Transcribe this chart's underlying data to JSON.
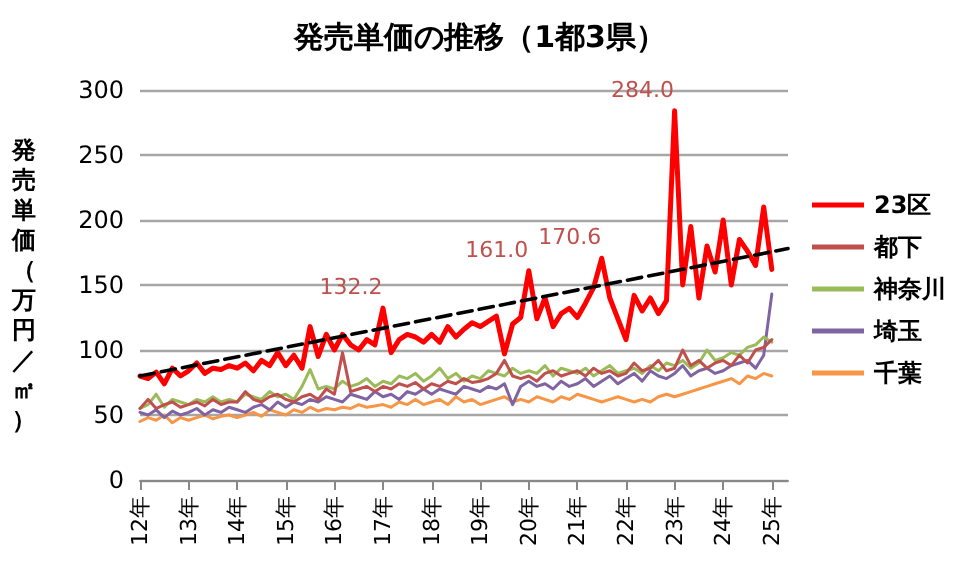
{
  "chart_data": {
    "type": "line",
    "title": "発売単価の推移（1都3県）",
    "ylabel": "発売単価（万円／㎡）",
    "categories": [
      "12年",
      null,
      null,
      null,
      null,
      null,
      "13年",
      null,
      null,
      null,
      null,
      null,
      "14年",
      null,
      null,
      null,
      null,
      null,
      "15年",
      null,
      null,
      null,
      null,
      null,
      "16年",
      null,
      null,
      null,
      null,
      null,
      "17年",
      null,
      null,
      null,
      null,
      null,
      "18年",
      null,
      null,
      null,
      null,
      null,
      "19年",
      null,
      null,
      null,
      null,
      null,
      "20年",
      null,
      null,
      null,
      null,
      null,
      "21年",
      null,
      null,
      null,
      null,
      null,
      "22年",
      null,
      null,
      null,
      null,
      null,
      "23年",
      null,
      null,
      null,
      null,
      null,
      "24年",
      null,
      null,
      null,
      null,
      null,
      "25年",
      null,
      null
    ],
    "ylim": [
      0,
      300
    ],
    "yticks": [
      0,
      50,
      100,
      150,
      200,
      250,
      300
    ],
    "grid": "y",
    "legend": "right",
    "marker": "none",
    "series": [
      {
        "name": "23区",
        "color": "#ff0000",
        "values": [
          80,
          78,
          83,
          74,
          86,
          80,
          84,
          90,
          82,
          86,
          85,
          88,
          86,
          90,
          84,
          92,
          88,
          98,
          88,
          96,
          86,
          118,
          95,
          112,
          100,
          112,
          104,
          100,
          108,
          104,
          132.2,
          98,
          108,
          112,
          110,
          106,
          112,
          106,
          118,
          110,
          116,
          121,
          118,
          122,
          126,
          97,
          120,
          125,
          161.0,
          124,
          140,
          118,
          128,
          132,
          125,
          136,
          148,
          170.6,
          140,
          124,
          108,
          142,
          130,
          140,
          128,
          138,
          284.0,
          150,
          195,
          140,
          180,
          160,
          200,
          150,
          185,
          176,
          165,
          210,
          162,
          null,
          null
        ],
        "value_labels": [
          null,
          null,
          null,
          null,
          null,
          null,
          null,
          null,
          null,
          null,
          null,
          null,
          null,
          null,
          null,
          null,
          null,
          null,
          null,
          null,
          null,
          null,
          null,
          null,
          null,
          null,
          null,
          null,
          null,
          null,
          "132.2",
          null,
          null,
          null,
          null,
          null,
          null,
          null,
          null,
          null,
          null,
          null,
          null,
          null,
          null,
          null,
          null,
          null,
          "161.0",
          null,
          null,
          null,
          null,
          null,
          null,
          null,
          null,
          "170.6",
          null,
          null,
          null,
          null,
          null,
          null,
          null,
          null,
          "284.0",
          null,
          null,
          null,
          null,
          null,
          null,
          null,
          null,
          null,
          null,
          null,
          null,
          null,
          null
        ]
      },
      {
        "name": "都下",
        "color": "#c0504d",
        "values": [
          55,
          62,
          55,
          58,
          60,
          56,
          58,
          60,
          57,
          62,
          58,
          60,
          60,
          68,
          62,
          60,
          64,
          66,
          62,
          60,
          64,
          66,
          62,
          70,
          66,
          98,
          68,
          70,
          72,
          68,
          72,
          70,
          74,
          72,
          75,
          70,
          74,
          72,
          76,
          74,
          78,
          75,
          76,
          78,
          82,
          92,
          80,
          78,
          80,
          76,
          82,
          84,
          80,
          82,
          84,
          80,
          86,
          82,
          84,
          80,
          82,
          90,
          84,
          86,
          92,
          84,
          86,
          100,
          88,
          92,
          86,
          90,
          92,
          88,
          96,
          90,
          100,
          102,
          108,
          null,
          null
        ]
      },
      {
        "name": "神奈川",
        "color": "#9bbb59",
        "values": [
          55,
          58,
          66,
          56,
          62,
          60,
          58,
          62,
          60,
          64,
          60,
          62,
          60,
          66,
          64,
          62,
          68,
          64,
          66,
          62,
          72,
          85,
          70,
          72,
          70,
          76,
          72,
          74,
          78,
          72,
          76,
          74,
          80,
          78,
          82,
          76,
          80,
          86,
          78,
          82,
          76,
          80,
          78,
          84,
          82,
          80,
          86,
          82,
          84,
          82,
          88,
          80,
          86,
          84,
          82,
          86,
          80,
          84,
          88,
          82,
          84,
          86,
          82,
          88,
          84,
          90,
          88,
          92,
          86,
          90,
          100,
          92,
          94,
          98,
          96,
          102,
          104,
          110,
          106,
          null,
          null
        ]
      },
      {
        "name": "埼玉",
        "color": "#8064a2",
        "values": [
          52,
          50,
          54,
          48,
          53,
          50,
          52,
          55,
          50,
          54,
          52,
          56,
          54,
          52,
          56,
          58,
          54,
          60,
          56,
          60,
          58,
          62,
          60,
          64,
          62,
          60,
          66,
          64,
          62,
          68,
          64,
          66,
          62,
          68,
          66,
          70,
          66,
          70,
          68,
          66,
          72,
          70,
          68,
          72,
          70,
          74,
          58,
          72,
          76,
          72,
          74,
          70,
          76,
          72,
          74,
          78,
          72,
          76,
          80,
          74,
          78,
          82,
          76,
          84,
          80,
          78,
          82,
          88,
          80,
          84,
          86,
          82,
          84,
          88,
          90,
          92,
          86,
          96,
          143,
          null,
          null
        ]
      },
      {
        "name": "千葉",
        "color": "#f79646",
        "values": [
          45,
          48,
          46,
          50,
          44,
          48,
          46,
          48,
          50,
          47,
          49,
          50,
          48,
          50,
          52,
          49,
          54,
          52,
          50,
          54,
          52,
          56,
          53,
          55,
          54,
          56,
          55,
          58,
          56,
          57,
          58,
          56,
          60,
          58,
          62,
          58,
          60,
          62,
          58,
          64,
          60,
          62,
          58,
          60,
          62,
          64,
          60,
          62,
          60,
          64,
          62,
          60,
          64,
          62,
          66,
          64,
          62,
          60,
          62,
          64,
          62,
          60,
          62,
          60,
          64,
          66,
          64,
          66,
          68,
          70,
          72,
          74,
          76,
          78,
          74,
          80,
          78,
          82,
          80,
          null,
          null
        ]
      },
      {
        "type": "line",
        "color": "#000000",
        "line_style": "dashed",
        "values": [
          80,
          null,
          null,
          null,
          null,
          null,
          null,
          null,
          null,
          null,
          null,
          null,
          null,
          null,
          null,
          null,
          null,
          null,
          null,
          null,
          null,
          null,
          null,
          null,
          null,
          null,
          null,
          null,
          null,
          null,
          null,
          null,
          null,
          null,
          null,
          null,
          null,
          null,
          null,
          null,
          null,
          null,
          null,
          null,
          null,
          null,
          null,
          null,
          null,
          null,
          null,
          null,
          null,
          null,
          null,
          null,
          null,
          null,
          null,
          null,
          null,
          null,
          null,
          null,
          null,
          null,
          null,
          null,
          null,
          null,
          null,
          null,
          null,
          null,
          null,
          null,
          null,
          null,
          null,
          null,
          178
        ]
      }
    ]
  }
}
